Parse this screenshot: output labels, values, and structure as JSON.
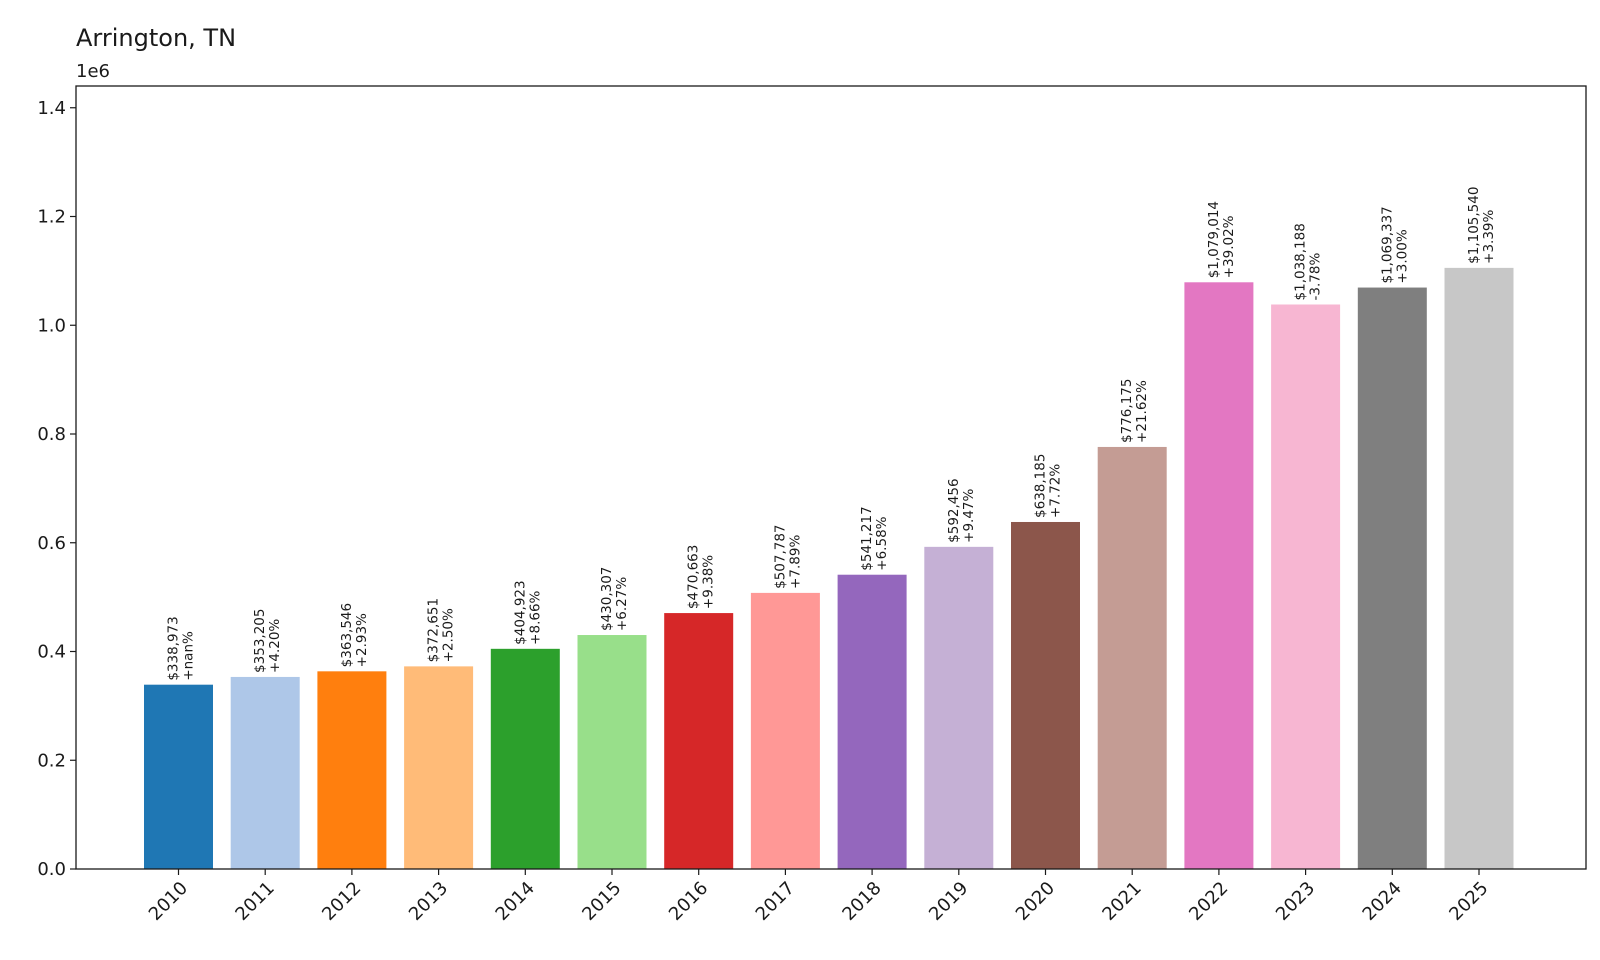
{
  "chart_data": {
    "type": "bar",
    "title": "Arrington, TN",
    "y_offset_label": "1e6",
    "xlabel": "",
    "ylabel": "",
    "categories": [
      "2010",
      "2011",
      "2012",
      "2013",
      "2014",
      "2015",
      "2016",
      "2017",
      "2018",
      "2019",
      "2020",
      "2021",
      "2022",
      "2023",
      "2024",
      "2025"
    ],
    "values": [
      338973,
      353205,
      363546,
      372651,
      404923,
      430307,
      470663,
      507787,
      541217,
      592456,
      638185,
      776175,
      1079014,
      1038188,
      1069337,
      1105540
    ],
    "value_labels": [
      "$338,973",
      "$353,205",
      "$363,546",
      "$372,651",
      "$404,923",
      "$430,307",
      "$470,663",
      "$507,787",
      "$541,217",
      "$592,456",
      "$638,185",
      "$776,175",
      "$1,079,014",
      "$1,038,188",
      "$1,069,337",
      "$1,105,540"
    ],
    "change_labels": [
      "+nan%",
      "+4.20%",
      "+2.93%",
      "+2.50%",
      "+8.66%",
      "+6.27%",
      "+9.38%",
      "+7.89%",
      "+6.58%",
      "+9.47%",
      "+7.72%",
      "+21.62%",
      "+39.02%",
      "-3.78%",
      "+3.00%",
      "+3.39%"
    ],
    "colors": [
      "#1f77b4",
      "#aec7e8",
      "#ff7f0e",
      "#ffbb78",
      "#2ca02c",
      "#98df8a",
      "#d62728",
      "#ff9896",
      "#9467bd",
      "#c5b0d5",
      "#8c564b",
      "#c49c94",
      "#e377c2",
      "#f7b6d2",
      "#7f7f7f",
      "#c7c7c7"
    ],
    "y_ticks": [
      0.0,
      0.2,
      0.4,
      0.6,
      0.8,
      1.0,
      1.2,
      1.4
    ],
    "y_tick_labels": [
      "0.0",
      "0.2",
      "0.4",
      "0.6",
      "0.8",
      "1.0",
      "1.2",
      "1.4"
    ],
    "ylim": [
      0,
      1440000
    ],
    "y_scale": 1000000,
    "grid": false,
    "legend": "none"
  }
}
